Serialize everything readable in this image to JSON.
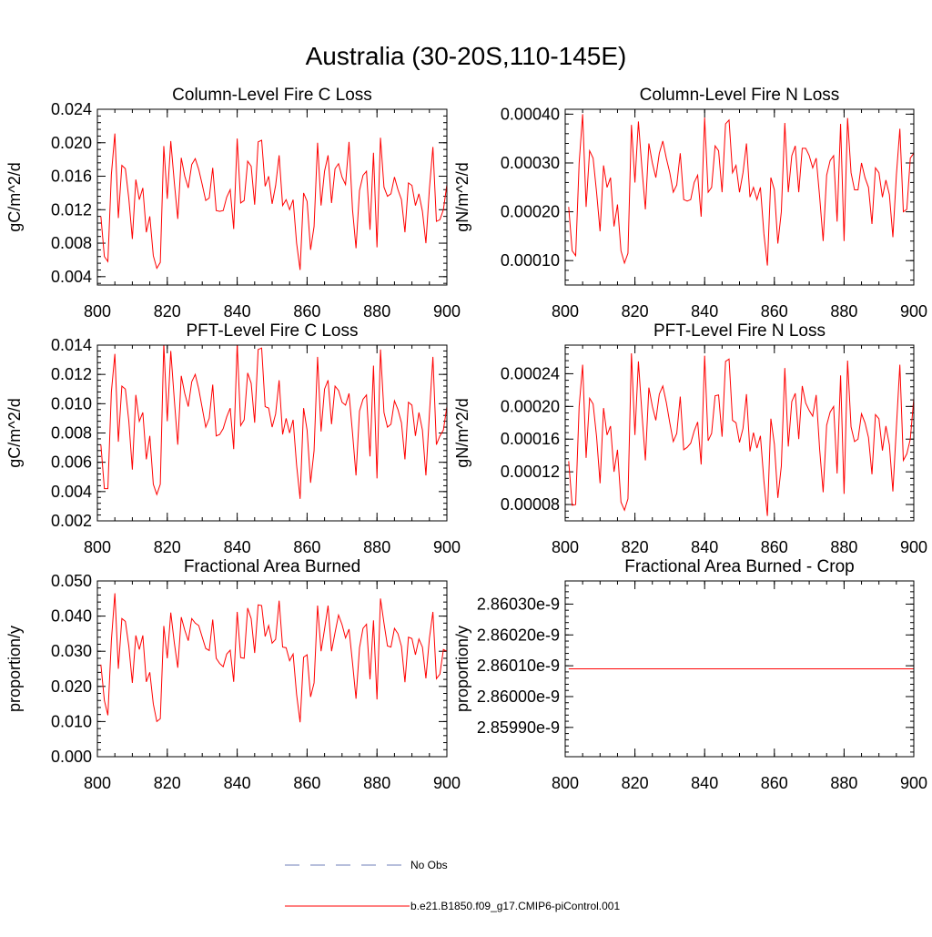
{
  "figure": {
    "title": "Australia (30-20S,110-145E)"
  },
  "colors": {
    "series": "#ff0000",
    "axis": "#000000",
    "no_obs": "#6f7fb8"
  },
  "chart_data": [
    {
      "type": "line",
      "title": "Column-Level Fire C Loss",
      "xlabel": "",
      "ylabel": "gC/m^2/d",
      "xlim": [
        800,
        900
      ],
      "ylim": [
        0.003,
        0.024
      ],
      "xticks": [
        800,
        820,
        840,
        860,
        880,
        900
      ],
      "xtick_labels": [
        "800",
        "820",
        "840",
        "860",
        "880",
        "900"
      ],
      "yticks": [
        0.004,
        0.008,
        0.012,
        0.016,
        0.02,
        0.024
      ],
      "ytick_labels": [
        "0.004",
        "0.008",
        "0.012",
        "0.016",
        "0.020",
        "0.024"
      ],
      "yminor": 0.0008,
      "x_start": 801,
      "series": [
        {
          "name": "b.e21.B1850.f09_g17.CMIP6-piControl.001",
          "values": [
            0.0112,
            0.0064,
            0.0058,
            0.0162,
            0.0211,
            0.011,
            0.0173,
            0.0169,
            0.0133,
            0.0085,
            0.0156,
            0.0132,
            0.0146,
            0.0093,
            0.0112,
            0.0065,
            0.005,
            0.0057,
            0.0196,
            0.0133,
            0.0202,
            0.0153,
            0.0109,
            0.0182,
            0.016,
            0.0146,
            0.0174,
            0.0181,
            0.0168,
            0.015,
            0.0131,
            0.0134,
            0.017,
            0.0119,
            0.0118,
            0.0119,
            0.0135,
            0.0144,
            0.0097,
            0.0205,
            0.0128,
            0.0131,
            0.0178,
            0.0172,
            0.0126,
            0.0201,
            0.0203,
            0.0148,
            0.016,
            0.0127,
            0.0149,
            0.0185,
            0.0125,
            0.0132,
            0.012,
            0.0132,
            0.008,
            0.0048,
            0.014,
            0.013,
            0.0072,
            0.01,
            0.02,
            0.0125,
            0.0166,
            0.0185,
            0.0128,
            0.0169,
            0.0175,
            0.0159,
            0.015,
            0.0201,
            0.012,
            0.0074,
            0.0143,
            0.0161,
            0.0166,
            0.0096,
            0.0188,
            0.0075,
            0.0206,
            0.0147,
            0.0136,
            0.0139,
            0.0159,
            0.0144,
            0.0132,
            0.0093,
            0.0152,
            0.0149,
            0.0125,
            0.0139,
            0.0118,
            0.008,
            0.0145,
            0.0195,
            0.0106,
            0.0108,
            0.012,
            0.015
          ]
        }
      ]
    },
    {
      "type": "line",
      "title": "Column-Level Fire N Loss",
      "xlabel": "",
      "ylabel": "gN/m^2/d",
      "xlim": [
        800,
        900
      ],
      "ylim": [
        5e-05,
        0.00041
      ],
      "xticks": [
        800,
        820,
        840,
        860,
        880,
        900
      ],
      "xtick_labels": [
        "800",
        "820",
        "840",
        "860",
        "880",
        "900"
      ],
      "yticks": [
        0.0001,
        0.0002,
        0.0003,
        0.0004
      ],
      "ytick_labels": [
        "0.00010",
        "0.00020",
        "0.00030",
        "0.00040"
      ],
      "yminor": 2e-05,
      "x_start": 801,
      "series": [
        {
          "name": "b.e21.B1850.f09_g17.CMIP6-piControl.001",
          "values": [
            0.00021,
            0.00012,
            0.00011,
            0.0003,
            0.0004,
            0.00021,
            0.000325,
            0.00031,
            0.00024,
            0.00016,
            0.000295,
            0.00025,
            0.00027,
            0.00017,
            0.000215,
            0.00012,
            9.5e-05,
            0.000115,
            0.000378,
            0.00026,
            0.000385,
            0.00029,
            0.000205,
            0.00034,
            0.0003,
            0.00027,
            0.00032,
            0.000345,
            0.00031,
            0.00028,
            0.00024,
            0.000255,
            0.00032,
            0.000225,
            0.000222,
            0.000225,
            0.00026,
            0.000275,
            0.00019,
            0.000393,
            0.00024,
            0.00025,
            0.000335,
            0.000325,
            0.00024,
            0.00038,
            0.000388,
            0.00028,
            0.000295,
            0.00024,
            0.00028,
            0.00034,
            0.00023,
            0.00025,
            0.000225,
            0.00025,
            0.000155,
            9e-05,
            0.00027,
            0.000245,
            0.000135,
            0.0002,
            0.000382,
            0.00024,
            0.000315,
            0.000335,
            0.00024,
            0.00033,
            0.00033,
            0.000315,
            0.00029,
            0.00031,
            0.00023,
            0.00014,
            0.000275,
            0.000305,
            0.000315,
            0.00018,
            0.00038,
            0.00014,
            0.000392,
            0.00028,
            0.000245,
            0.000245,
            0.0003,
            0.00027,
            0.00025,
            0.000175,
            0.00029,
            0.00028,
            0.00023,
            0.000265,
            0.000235,
            0.000148,
            0.000275,
            0.00037,
            0.0002,
            0.000205,
            0.00031,
            0.00032
          ]
        }
      ]
    },
    {
      "type": "line",
      "title": "PFT-Level Fire C Loss",
      "xlabel": "",
      "ylabel": "gC/m^2/d",
      "xlim": [
        800,
        900
      ],
      "ylim": [
        0.002,
        0.014
      ],
      "xticks": [
        800,
        820,
        840,
        860,
        880,
        900
      ],
      "xtick_labels": [
        "800",
        "820",
        "840",
        "860",
        "880",
        "900"
      ],
      "yticks": [
        0.002,
        0.004,
        0.006,
        0.008,
        0.01,
        0.012,
        0.014
      ],
      "ytick_labels": [
        "0.002",
        "0.004",
        "0.006",
        "0.008",
        "0.010",
        "0.012",
        "0.014"
      ],
      "yminor": 0.0004,
      "x_start": 801,
      "series": [
        {
          "name": "b.e21.B1850.f09_g17.CMIP6-piControl.001",
          "values": [
            0.0072,
            0.0042,
            0.0042,
            0.0108,
            0.0134,
            0.0074,
            0.0112,
            0.011,
            0.0088,
            0.0055,
            0.0106,
            0.0088,
            0.0094,
            0.0062,
            0.0078,
            0.0045,
            0.0038,
            0.0045,
            0.0141,
            0.0088,
            0.0136,
            0.0103,
            0.0072,
            0.0119,
            0.0107,
            0.0098,
            0.0115,
            0.012,
            0.011,
            0.0097,
            0.0084,
            0.009,
            0.0113,
            0.0078,
            0.0079,
            0.0083,
            0.0091,
            0.0097,
            0.0069,
            0.0141,
            0.0085,
            0.0089,
            0.0121,
            0.0114,
            0.0087,
            0.0137,
            0.0138,
            0.0098,
            0.0097,
            0.0084,
            0.0093,
            0.0116,
            0.0079,
            0.009,
            0.008,
            0.0089,
            0.0058,
            0.0035,
            0.0097,
            0.0082,
            0.0046,
            0.0068,
            0.0132,
            0.0081,
            0.011,
            0.0116,
            0.0086,
            0.0112,
            0.0109,
            0.0101,
            0.0099,
            0.0107,
            0.008,
            0.0051,
            0.0095,
            0.0103,
            0.0106,
            0.0064,
            0.0126,
            0.0049,
            0.0137,
            0.0094,
            0.0084,
            0.0086,
            0.0102,
            0.0096,
            0.0087,
            0.0062,
            0.0101,
            0.0099,
            0.0078,
            0.0094,
            0.0082,
            0.0051,
            0.0093,
            0.0132,
            0.0072,
            0.0078,
            0.0082,
            0.0098
          ]
        }
      ]
    },
    {
      "type": "line",
      "title": "PFT-Level Fire N Loss",
      "xlabel": "",
      "ylabel": "gN/m^2/d",
      "xlim": [
        800,
        900
      ],
      "ylim": [
        6e-05,
        0.000275
      ],
      "xticks": [
        800,
        820,
        840,
        860,
        880,
        900
      ],
      "xtick_labels": [
        "800",
        "820",
        "840",
        "860",
        "880",
        "900"
      ],
      "yticks": [
        8e-05,
        0.00012,
        0.00016,
        0.0002,
        0.00024
      ],
      "ytick_labels": [
        "0.00008",
        "0.00012",
        "0.00016",
        "0.00020",
        "0.00024"
      ],
      "yminor": 8e-06,
      "x_start": 801,
      "series": [
        {
          "name": "b.e21.B1850.f09_g17.CMIP6-piControl.001",
          "values": [
            0.000133,
            7.9e-05,
            8e-05,
            0.0002,
            0.000251,
            0.000137,
            0.00021,
            0.000203,
            0.000163,
            0.000106,
            0.000198,
            0.000165,
            0.000176,
            0.00012,
            0.000147,
            8.3e-05,
            7.3e-05,
            8.7e-05,
            0.000265,
            0.000165,
            0.000255,
            0.000192,
            0.000134,
            0.000223,
            0.0002,
            0.000183,
            0.000215,
            0.000225,
            0.000205,
            0.00018,
            0.000157,
            0.000167,
            0.000212,
            0.000147,
            0.00015,
            0.000155,
            0.00017,
            0.000181,
            0.000129,
            0.000262,
            0.000158,
            0.000167,
            0.000213,
            0.000214,
            0.000163,
            0.000255,
            0.000258,
            0.000183,
            0.00018,
            0.000156,
            0.000173,
            0.000215,
            0.000145,
            0.000168,
            0.000149,
            0.000164,
            0.000109,
            6.6e-05,
            0.000185,
            0.000154,
            8.8e-05,
            0.000127,
            0.000247,
            0.000151,
            0.000206,
            0.000216,
            0.00016,
            0.000225,
            0.000204,
            0.000195,
            0.000188,
            0.000214,
            0.000147,
            9.5e-05,
            0.000177,
            0.000193,
            0.0002,
            0.000118,
            0.000238,
            9.3e-05,
            0.000256,
            0.000175,
            0.000157,
            0.00016,
            0.000191,
            0.00018,
            0.000162,
            0.000117,
            0.00019,
            0.000185,
            0.000146,
            0.000176,
            0.000153,
            9.6e-05,
            0.000174,
            0.000251,
            0.000134,
            0.000142,
            0.00016,
            0.00021
          ]
        }
      ]
    },
    {
      "type": "line",
      "title": "Fractional Area Burned",
      "xlabel": "",
      "ylabel": "proportion/y",
      "xlim": [
        800,
        900
      ],
      "ylim": [
        0.0,
        0.05
      ],
      "xticks": [
        800,
        820,
        840,
        860,
        880,
        900
      ],
      "xtick_labels": [
        "800",
        "820",
        "840",
        "860",
        "880",
        "900"
      ],
      "yticks": [
        0.0,
        0.01,
        0.02,
        0.03,
        0.04,
        0.05
      ],
      "ytick_labels": [
        "0.000",
        "0.010",
        "0.020",
        "0.030",
        "0.040",
        "0.050"
      ],
      "yminor": 0.002,
      "x_start": 801,
      "series": [
        {
          "name": "b.e21.B1850.f09_g17.CMIP6-piControl.001",
          "values": [
            0.0262,
            0.016,
            0.0118,
            0.033,
            0.0465,
            0.025,
            0.0393,
            0.0385,
            0.0314,
            0.021,
            0.0345,
            0.0305,
            0.0345,
            0.0213,
            0.024,
            0.015,
            0.01,
            0.0108,
            0.0372,
            0.028,
            0.041,
            0.0325,
            0.0253,
            0.0397,
            0.036,
            0.033,
            0.0393,
            0.038,
            0.0373,
            0.034,
            0.0308,
            0.0302,
            0.039,
            0.028,
            0.0265,
            0.0256,
            0.0292,
            0.0303,
            0.0213,
            0.0412,
            0.0282,
            0.028,
            0.0423,
            0.0393,
            0.0295,
            0.0432,
            0.043,
            0.0342,
            0.0373,
            0.0323,
            0.0334,
            0.0444,
            0.0312,
            0.031,
            0.0273,
            0.0292,
            0.0177,
            0.0098,
            0.0283,
            0.029,
            0.017,
            0.021,
            0.043,
            0.03,
            0.0363,
            0.043,
            0.03,
            0.0353,
            0.0403,
            0.0376,
            0.0338,
            0.0363,
            0.0267,
            0.0165,
            0.031,
            0.0365,
            0.0377,
            0.022,
            0.0388,
            0.0163,
            0.045,
            0.038,
            0.0315,
            0.0312,
            0.0365,
            0.035,
            0.0314,
            0.0212,
            0.034,
            0.0336,
            0.029,
            0.0335,
            0.0312,
            0.0223,
            0.0337,
            0.0412,
            0.0222,
            0.0235,
            0.0305,
            0.03
          ]
        }
      ]
    },
    {
      "type": "line",
      "title": "Fractional Area Burned - Crop",
      "xlabel": "",
      "ylabel": "proportion/y",
      "xlim": [
        800,
        900
      ],
      "ylim": [
        2.859805e-09,
        2.860375e-09
      ],
      "xticks": [
        800,
        820,
        840,
        860,
        880,
        900
      ],
      "xtick_labels": [
        "800",
        "820",
        "840",
        "860",
        "880",
        "900"
      ],
      "yticks": [
        2.8599e-09,
        2.86e-09,
        2.8601e-09,
        2.8602e-09,
        2.8603e-09
      ],
      "ytick_labels": [
        "2.85990e-9",
        "2.86000e-9",
        "2.86010e-9",
        "2.86020e-9",
        "2.86030e-9"
      ],
      "yminor": 2e-14,
      "x_start": 801,
      "series": [
        {
          "name": "b.e21.B1850.f09_g17.CMIP6-piControl.001",
          "values": [
            2.86009e-09,
            2.86009e-09,
            2.86009e-09,
            2.86009e-09,
            2.86009e-09,
            2.86009e-09,
            2.86009e-09,
            2.86009e-09,
            2.86009e-09,
            2.86009e-09,
            2.86009e-09,
            2.86009e-09,
            2.86009e-09,
            2.86009e-09,
            2.86009e-09,
            2.86009e-09,
            2.86009e-09,
            2.86009e-09,
            2.86009e-09,
            2.86009e-09,
            2.86009e-09,
            2.86009e-09,
            2.86009e-09,
            2.86009e-09,
            2.86009e-09,
            2.86009e-09,
            2.86009e-09,
            2.86009e-09,
            2.86009e-09,
            2.86009e-09,
            2.86009e-09,
            2.86009e-09,
            2.86009e-09,
            2.86009e-09,
            2.86009e-09,
            2.86009e-09,
            2.86009e-09,
            2.86009e-09,
            2.86009e-09,
            2.86009e-09,
            2.86009e-09,
            2.86009e-09,
            2.86009e-09,
            2.86009e-09,
            2.86009e-09,
            2.86009e-09,
            2.86009e-09,
            2.86009e-09,
            2.86009e-09,
            2.86009e-09,
            2.86009e-09,
            2.86009e-09,
            2.86009e-09,
            2.86009e-09,
            2.86009e-09,
            2.86009e-09,
            2.86009e-09,
            2.86009e-09,
            2.86009e-09,
            2.86009e-09,
            2.86009e-09,
            2.86009e-09,
            2.86009e-09,
            2.86009e-09,
            2.86009e-09,
            2.86009e-09,
            2.86009e-09,
            2.86009e-09,
            2.86009e-09,
            2.86009e-09,
            2.86009e-09,
            2.86009e-09,
            2.86009e-09,
            2.86009e-09,
            2.86009e-09,
            2.86009e-09,
            2.86009e-09,
            2.86009e-09,
            2.86009e-09,
            2.86009e-09,
            2.86009e-09,
            2.86009e-09,
            2.86009e-09,
            2.86009e-09,
            2.86009e-09,
            2.86009e-09,
            2.86009e-09,
            2.86009e-09,
            2.86009e-09,
            2.86009e-09,
            2.86009e-09,
            2.86009e-09,
            2.86009e-09,
            2.86009e-09,
            2.86009e-09,
            2.86009e-09,
            2.86009e-09,
            2.86009e-09,
            2.86009e-09,
            2.86009e-09
          ]
        }
      ]
    }
  ],
  "legend": {
    "entries": [
      {
        "label": "No Obs",
        "style": "dashed",
        "color": "#6f7fb8"
      },
      {
        "label": "b.e21.B1850.f09_g17.CMIP6-piControl.001",
        "style": "solid",
        "color": "#ff0000"
      }
    ]
  }
}
